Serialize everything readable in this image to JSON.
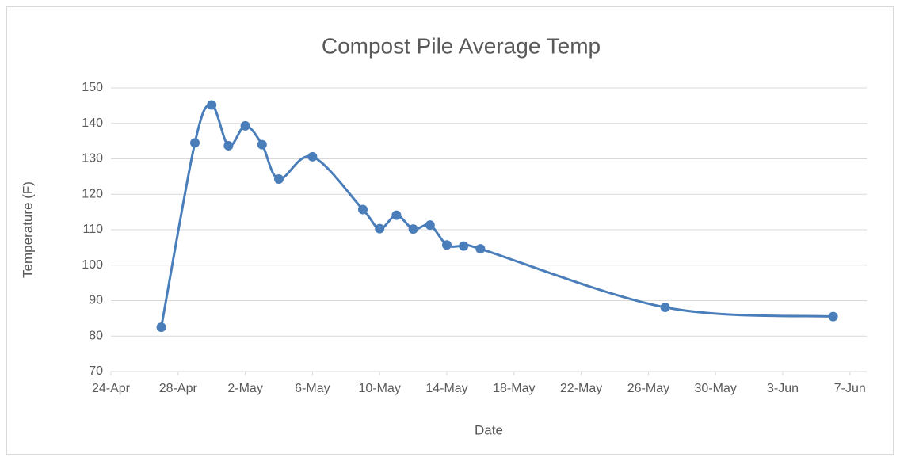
{
  "chart_data": {
    "type": "line",
    "title": "Compost Pile Average Temp",
    "x_label": "Date",
    "y_label": "Temperature (F)",
    "x": [
      "27-Apr",
      "29-Apr",
      "30-Apr",
      "1-May",
      "2-May",
      "3-May",
      "4-May",
      "6-May",
      "9-May",
      "10-May",
      "11-May",
      "12-May",
      "13-May",
      "14-May",
      "15-May",
      "16-May",
      "27-May",
      "6-Jun"
    ],
    "series": [
      {
        "name": "Temperature (F)",
        "color": "#4a7ebb",
        "values": [
          82.5,
          134.5,
          145.2,
          133.7,
          139.3,
          134,
          124.3,
          130.6,
          115.7,
          110.3,
          114.1,
          110.2,
          111.3,
          105.7,
          105.4,
          104.6,
          88.1,
          85.5
        ]
      }
    ],
    "xlim": [
      "24-Apr",
      "8-Jun"
    ],
    "xticks": [
      "24-Apr",
      "28-Apr",
      "2-May",
      "6-May",
      "10-May",
      "14-May",
      "18-May",
      "22-May",
      "26-May",
      "30-May",
      "3-Jun",
      "7-Jun"
    ],
    "ylim": [
      70,
      150
    ],
    "yticks": [
      70,
      80,
      90,
      100,
      110,
      120,
      130,
      140,
      150
    ],
    "grid": true,
    "smooth": true,
    "markers": true
  }
}
